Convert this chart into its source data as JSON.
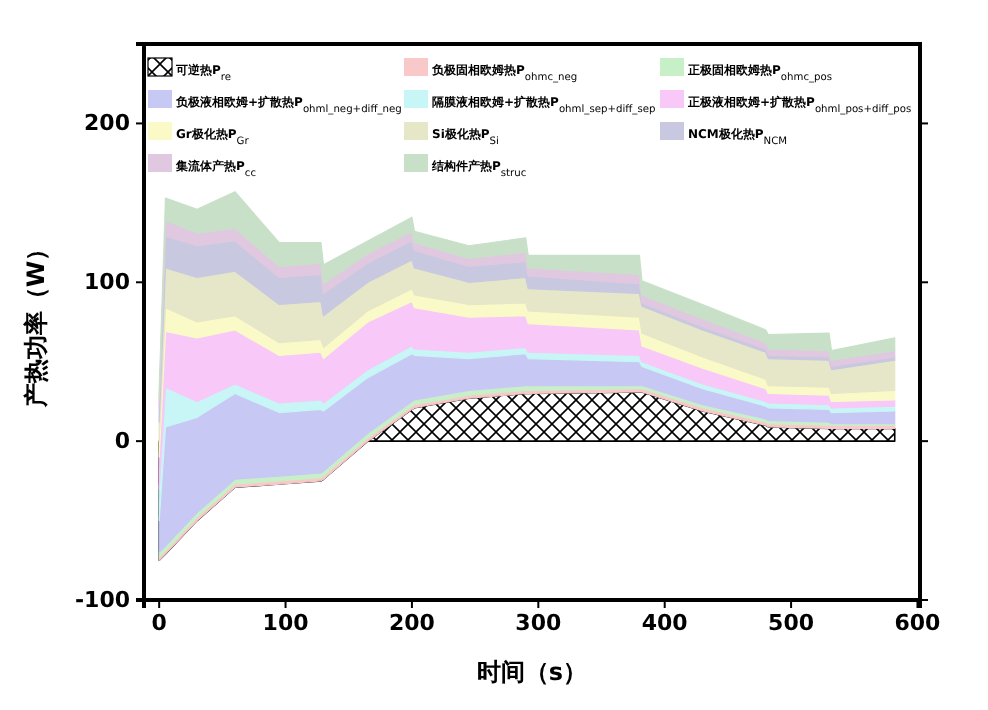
{
  "chart_data": {
    "type": "area",
    "stacked": true,
    "xlabel": "时间（s）",
    "ylabel": "产热功率（W）",
    "legend": "top",
    "x": [
      0,
      5,
      30,
      60,
      95,
      128,
      130,
      165,
      200,
      202,
      245,
      290,
      292,
      380,
      382,
      430,
      480,
      482,
      530,
      532,
      582
    ],
    "xlim": [
      -12,
      602
    ],
    "xticks": [
      0,
      100,
      200,
      300,
      400,
      500,
      600
    ],
    "ylim": [
      -100,
      250
    ],
    "yticks": [
      -100,
      0,
      100,
      200
    ],
    "series": [
      {
        "name": "可逆热P$_{re}$",
        "color": "#000000",
        "values": [
          -75,
          -71,
          -50,
          -29,
          -27,
          -25,
          -24,
          0,
          20,
          21,
          27,
          30,
          30,
          31,
          31,
          19,
          10,
          9,
          8,
          8,
          8
        ]
      },
      {
        "name": "负极固相欧姆热P$_{ohmc_neg}$",
        "color": "#f9c8c8",
        "values": [
          2,
          2,
          2,
          2,
          2,
          2,
          2,
          2,
          2,
          2,
          2,
          2,
          2,
          2,
          2,
          2,
          2,
          2,
          2,
          2,
          2
        ]
      },
      {
        "name": "正极固相欧姆热P$_{ohmc_pos}$",
        "color": "#c8f0c8",
        "values": [
          3,
          3,
          3,
          3,
          3,
          3,
          3,
          3,
          3,
          3,
          3,
          3,
          3,
          2,
          2,
          2,
          2,
          2,
          2,
          1,
          1
        ]
      },
      {
        "name": "负极液相欧姆+扩散热P$_{ohml_neg+diff_neg}$",
        "color": "#c8c8f5",
        "values": [
          20,
          75,
          60,
          54,
          40,
          40,
          38,
          35,
          30,
          28,
          20,
          20,
          17,
          15,
          12,
          10,
          8,
          8,
          8,
          7,
          8
        ]
      },
      {
        "name": "隔膜液相欧姆+扩散热P$_{ohml_sep+diff_sep}$",
        "color": "#c8f5f5",
        "values": [
          20,
          25,
          10,
          6,
          6,
          6,
          5,
          5,
          5,
          4,
          4,
          4,
          4,
          4,
          3,
          3,
          3,
          3,
          3,
          3,
          3
        ]
      },
      {
        "name": "正极液相欧姆+扩散热P$_{ohml_pos+diff_pos}$",
        "color": "#f8c8f8",
        "values": [
          20,
          35,
          40,
          34,
          30,
          30,
          28,
          30,
          28,
          26,
          22,
          20,
          18,
          16,
          10,
          10,
          8,
          6,
          6,
          4,
          4
        ]
      },
      {
        "name": "Gr极化热P$_{Gr}$",
        "color": "#fafac8",
        "values": [
          10,
          15,
          10,
          9,
          8,
          8,
          7,
          7,
          8,
          8,
          8,
          8,
          8,
          8,
          8,
          7,
          6,
          5,
          5,
          5,
          6
        ]
      },
      {
        "name": "Si极化热P$_{Si}$",
        "color": "#e6e6c8",
        "values": [
          12,
          25,
          28,
          28,
          24,
          24,
          20,
          18,
          18,
          17,
          14,
          16,
          14,
          15,
          17,
          17,
          17,
          17,
          17,
          15,
          19
        ]
      },
      {
        "name": "NCM极化热P$_{NCM}$",
        "color": "#c8c8e0",
        "values": [
          10,
          20,
          20,
          19,
          17,
          17,
          14,
          12,
          12,
          11,
          10,
          10,
          8,
          6,
          2,
          2,
          2,
          2,
          2,
          2,
          2
        ]
      },
      {
        "name": "集流体产热P$_{cc}$",
        "color": "#e0c8e0",
        "values": [
          5,
          10,
          8,
          8,
          7,
          7,
          6,
          6,
          6,
          5,
          5,
          6,
          5,
          6,
          5,
          5,
          4,
          4,
          4,
          4,
          4
        ]
      },
      {
        "name": "结构件产热P$_{struc}$",
        "color": "#c8e0c8",
        "values": [
          5,
          14,
          15,
          23,
          15,
          13,
          12,
          8,
          9,
          7,
          8,
          9,
          8,
          12,
          9,
          9,
          8,
          9,
          11,
          6,
          8
        ]
      }
    ]
  }
}
